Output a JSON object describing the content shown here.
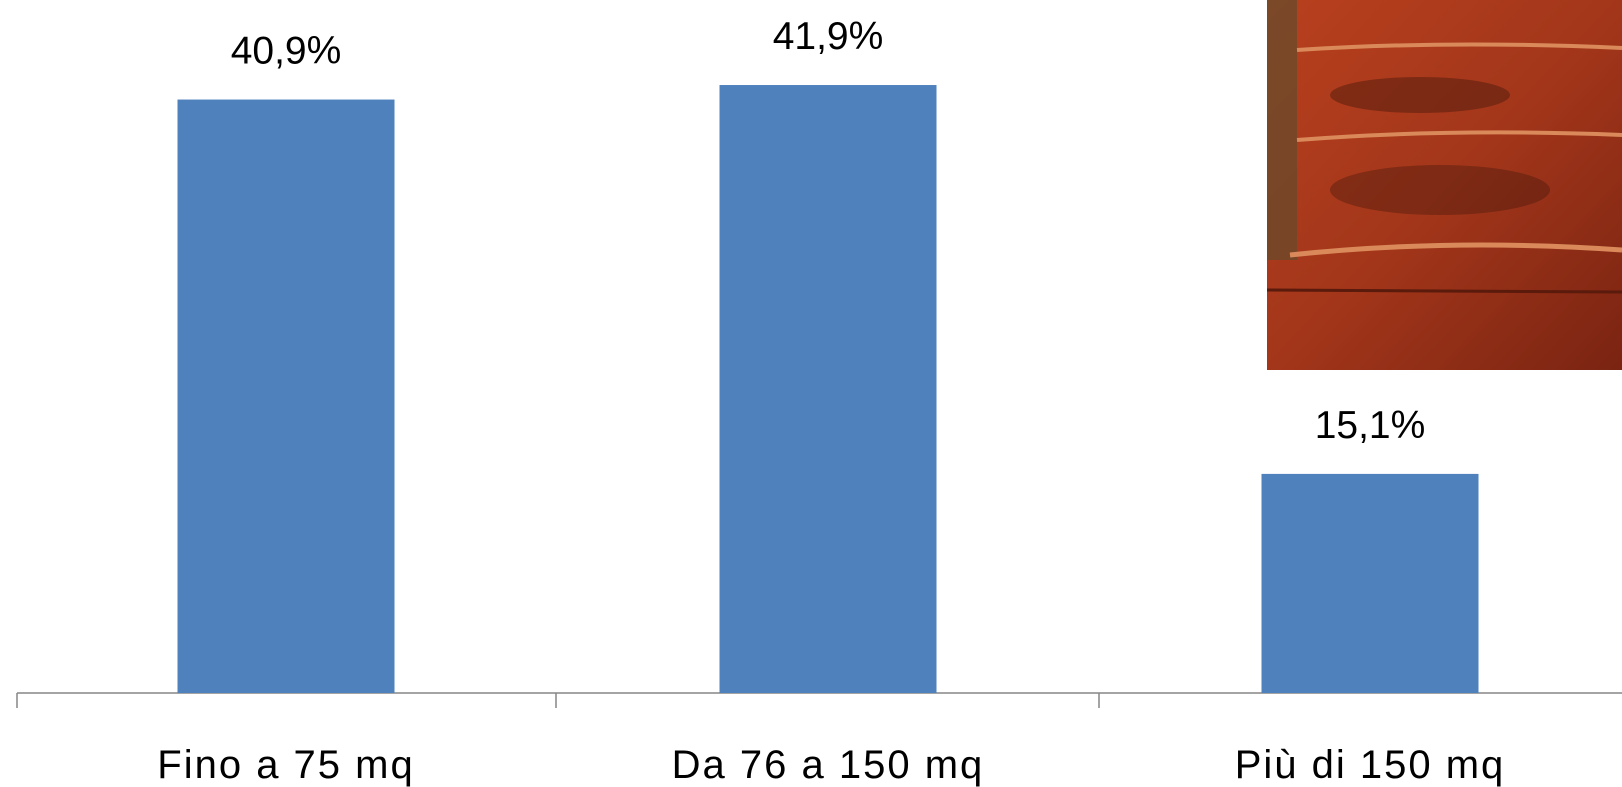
{
  "chart_data": {
    "type": "bar",
    "categories": [
      "Fino a 75 mq",
      "Da 76 a 150 mq",
      "Più di 150 mq"
    ],
    "values": [
      40.9,
      41.9,
      15.1
    ],
    "value_labels": [
      "40,9%",
      "41,9%",
      "15,1%"
    ],
    "color": "#4f81bd"
  }
}
